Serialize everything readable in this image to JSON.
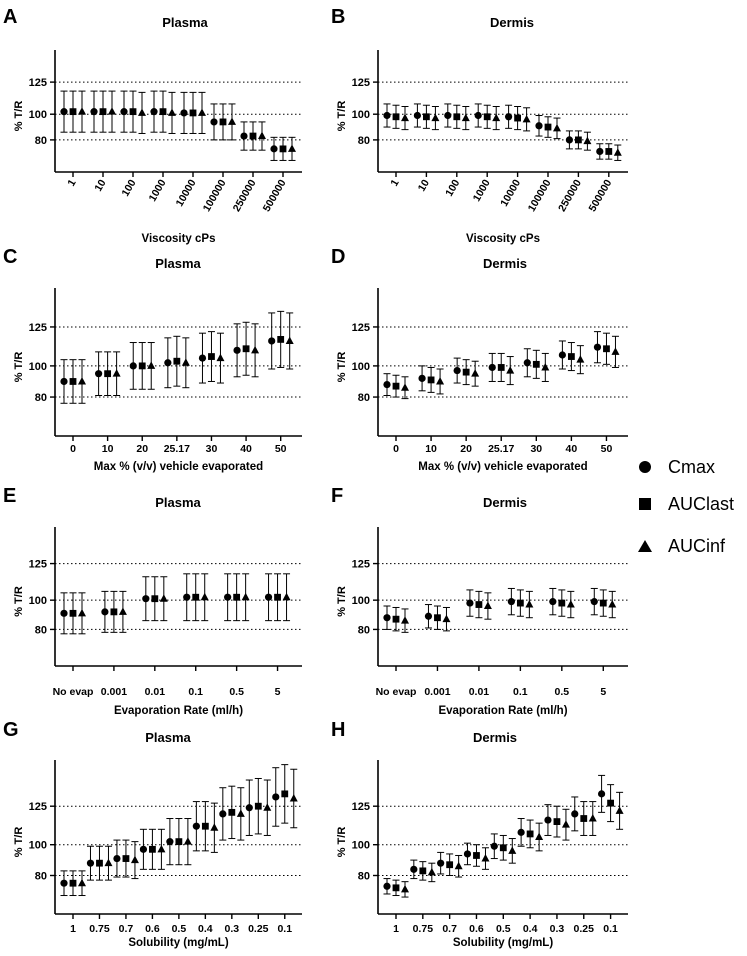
{
  "legend": {
    "items": [
      {
        "label": "Cmax",
        "marker": "circle"
      },
      {
        "label": "AUClast",
        "marker": "square"
      },
      {
        "label": "AUCinf",
        "marker": "triangle"
      }
    ]
  },
  "chart_data": [
    {
      "panel": "A",
      "title": "Plasma",
      "type": "scatter",
      "xlabel": "Viscosity cPs",
      "ylabel": "% T/R",
      "ylim": [
        55,
        150
      ],
      "yticks": [
        80,
        100,
        125
      ],
      "reference_lines": [
        80,
        100,
        125
      ],
      "tick_rotation": -60,
      "categories": [
        "1",
        "10",
        "100",
        "1000",
        "10000",
        "100000",
        "250000",
        "500000"
      ],
      "series": [
        {
          "name": "Cmax",
          "marker": "circle",
          "values": [
            102,
            102,
            102,
            102,
            101,
            94,
            83,
            73
          ],
          "error": [
            16,
            16,
            16,
            16,
            16,
            14,
            11,
            9
          ]
        },
        {
          "name": "AUClast",
          "marker": "square",
          "values": [
            102,
            102,
            102,
            102,
            101,
            94,
            83,
            73
          ],
          "error": [
            16,
            16,
            16,
            16,
            16,
            14,
            11,
            9
          ]
        },
        {
          "name": "AUCinf",
          "marker": "triangle",
          "values": [
            102,
            102,
            101,
            101,
            101,
            94,
            83,
            73
          ],
          "error": [
            16,
            16,
            16,
            16,
            16,
            14,
            11,
            9
          ]
        }
      ]
    },
    {
      "panel": "B",
      "title": "Dermis",
      "type": "scatter",
      "xlabel": "Viscosity cPs",
      "ylabel": "% T/R",
      "ylim": [
        55,
        150
      ],
      "yticks": [
        80,
        100,
        125
      ],
      "reference_lines": [
        80,
        100,
        125
      ],
      "tick_rotation": -60,
      "categories": [
        "1",
        "10",
        "100",
        "1000",
        "10000",
        "100000",
        "250000",
        "500000"
      ],
      "series": [
        {
          "name": "Cmax",
          "marker": "circle",
          "values": [
            99,
            99,
            99,
            99,
            98,
            91,
            80,
            71
          ],
          "error": [
            9,
            9,
            9,
            9,
            9,
            8,
            7,
            6
          ]
        },
        {
          "name": "AUClast",
          "marker": "square",
          "values": [
            98,
            98,
            98,
            98,
            97,
            90,
            80,
            71
          ],
          "error": [
            9,
            9,
            9,
            9,
            9,
            8,
            7,
            6
          ]
        },
        {
          "name": "AUCinf",
          "marker": "triangle",
          "values": [
            97,
            97,
            97,
            97,
            96,
            89,
            79,
            70
          ],
          "error": [
            9,
            9,
            9,
            9,
            9,
            8,
            7,
            6
          ]
        }
      ]
    },
    {
      "panel": "C",
      "title": "Plasma",
      "type": "scatter",
      "xlabel": "Max % (v/v) vehicle evaporated",
      "ylabel": "% T/R",
      "ylim": [
        55,
        150
      ],
      "yticks": [
        80,
        100,
        125
      ],
      "reference_lines": [
        80,
        100,
        125
      ],
      "tick_rotation": 0,
      "categories": [
        "0",
        "10",
        "20",
        "25.17",
        "30",
        "40",
        "50"
      ],
      "series": [
        {
          "name": "Cmax",
          "marker": "circle",
          "values": [
            90,
            95,
            100,
            102,
            105,
            110,
            116
          ],
          "error": [
            14,
            14,
            15,
            16,
            16,
            17,
            18
          ]
        },
        {
          "name": "AUClast",
          "marker": "square",
          "values": [
            90,
            95,
            100,
            103,
            106,
            111,
            117
          ],
          "error": [
            14,
            14,
            15,
            16,
            16,
            17,
            18
          ]
        },
        {
          "name": "AUCinf",
          "marker": "triangle",
          "values": [
            90,
            95,
            100,
            102,
            105,
            110,
            116
          ],
          "error": [
            14,
            14,
            15,
            16,
            16,
            17,
            18
          ]
        }
      ]
    },
    {
      "panel": "D",
      "title": "Dermis",
      "type": "scatter",
      "xlabel": "Max % (v/v) vehicle evaporated",
      "ylabel": "% T/R",
      "ylim": [
        55,
        150
      ],
      "yticks": [
        80,
        100,
        125
      ],
      "reference_lines": [
        80,
        100,
        125
      ],
      "tick_rotation": 0,
      "categories": [
        "0",
        "10",
        "20",
        "25.17",
        "30",
        "40",
        "50"
      ],
      "series": [
        {
          "name": "Cmax",
          "marker": "circle",
          "values": [
            88,
            92,
            97,
            99,
            102,
            107,
            112
          ],
          "error": [
            7,
            8,
            8,
            9,
            9,
            9,
            10
          ]
        },
        {
          "name": "AUClast",
          "marker": "square",
          "values": [
            87,
            91,
            96,
            99,
            101,
            106,
            111
          ],
          "error": [
            7,
            8,
            8,
            9,
            9,
            9,
            10
          ]
        },
        {
          "name": "AUCinf",
          "marker": "triangle",
          "values": [
            86,
            90,
            95,
            97,
            99,
            104,
            109
          ],
          "error": [
            7,
            8,
            8,
            9,
            9,
            9,
            10
          ]
        }
      ]
    },
    {
      "panel": "E",
      "title": "Plasma",
      "type": "scatter",
      "xlabel": "Evaporation Rate  (ml/h)",
      "ylabel": "% T/R",
      "ylim": [
        55,
        150
      ],
      "yticks": [
        80,
        100,
        125
      ],
      "reference_lines": [
        80,
        100,
        125
      ],
      "tick_rotation": 0,
      "categories": [
        "No evap",
        "0.001",
        "0.01",
        "0.1",
        "0.5",
        "5"
      ],
      "series": [
        {
          "name": "Cmax",
          "marker": "circle",
          "values": [
            91,
            92,
            101,
            102,
            102,
            102
          ],
          "error": [
            14,
            14,
            15,
            16,
            16,
            16
          ]
        },
        {
          "name": "AUClast",
          "marker": "square",
          "values": [
            91,
            92,
            101,
            102,
            102,
            102
          ],
          "error": [
            14,
            14,
            15,
            16,
            16,
            16
          ]
        },
        {
          "name": "AUCinf",
          "marker": "triangle",
          "values": [
            91,
            92,
            101,
            102,
            102,
            102
          ],
          "error": [
            14,
            14,
            15,
            16,
            16,
            16
          ]
        }
      ]
    },
    {
      "panel": "F",
      "title": "Dermis",
      "type": "scatter",
      "xlabel": "Evaporation Rate  (ml/h)",
      "ylabel": "% T/R",
      "ylim": [
        55,
        150
      ],
      "yticks": [
        80,
        100,
        125
      ],
      "reference_lines": [
        80,
        100,
        125
      ],
      "tick_rotation": 0,
      "categories": [
        "No evap",
        "0.001",
        "0.01",
        "0.1",
        "0.5",
        "5"
      ],
      "series": [
        {
          "name": "Cmax",
          "marker": "circle",
          "values": [
            88,
            89,
            98,
            99,
            99,
            99
          ],
          "error": [
            8,
            8,
            9,
            9,
            9,
            9
          ]
        },
        {
          "name": "AUClast",
          "marker": "square",
          "values": [
            87,
            88,
            97,
            98,
            98,
            98
          ],
          "error": [
            8,
            8,
            9,
            9,
            9,
            9
          ]
        },
        {
          "name": "AUCinf",
          "marker": "triangle",
          "values": [
            86,
            87,
            96,
            97,
            97,
            97
          ],
          "error": [
            8,
            8,
            9,
            9,
            9,
            9
          ]
        }
      ]
    },
    {
      "panel": "G",
      "title": "Plasma",
      "type": "scatter",
      "xlabel": "Solubility (mg/mL)",
      "ylabel": "% T/R",
      "ylim": [
        55,
        155
      ],
      "yticks": [
        80,
        100,
        125
      ],
      "reference_lines": [
        80,
        100,
        125
      ],
      "tick_rotation": 0,
      "categories": [
        "1",
        "0.75",
        "0.7",
        "0.6",
        "0.5",
        "0.4",
        "0.3",
        "0.25",
        "0.1"
      ],
      "series": [
        {
          "name": "Cmax",
          "marker": "circle",
          "values": [
            75,
            88,
            91,
            97,
            102,
            112,
            120,
            124,
            131
          ],
          "error": [
            8,
            11,
            12,
            13,
            15,
            16,
            17,
            18,
            19
          ]
        },
        {
          "name": "AUClast",
          "marker": "square",
          "values": [
            75,
            88,
            91,
            97,
            102,
            112,
            121,
            125,
            133
          ],
          "error": [
            8,
            11,
            12,
            13,
            15,
            16,
            17,
            18,
            19
          ]
        },
        {
          "name": "AUCinf",
          "marker": "triangle",
          "values": [
            75,
            88,
            90,
            97,
            102,
            111,
            120,
            124,
            130
          ],
          "error": [
            8,
            11,
            12,
            13,
            15,
            16,
            17,
            18,
            19
          ]
        }
      ]
    },
    {
      "panel": "H",
      "title": "Dermis",
      "type": "scatter",
      "xlabel": "Solubility (mg/mL)",
      "ylabel": "% T/R",
      "ylim": [
        55,
        155
      ],
      "yticks": [
        80,
        100,
        125
      ],
      "reference_lines": [
        80,
        100,
        125
      ],
      "tick_rotation": 0,
      "categories": [
        "1",
        "0.75",
        "0.7",
        "0.6",
        "0.5",
        "0.4",
        "0.3",
        "0.25",
        "0.1"
      ],
      "series": [
        {
          "name": "Cmax",
          "marker": "circle",
          "values": [
            73,
            84,
            88,
            94,
            99,
            108,
            116,
            120,
            133
          ],
          "error": [
            5,
            6,
            7,
            7,
            8,
            9,
            10,
            11,
            12
          ]
        },
        {
          "name": "AUClast",
          "marker": "square",
          "values": [
            72,
            83,
            87,
            93,
            98,
            107,
            115,
            117,
            127
          ],
          "error": [
            5,
            6,
            7,
            7,
            8,
            9,
            10,
            11,
            12
          ]
        },
        {
          "name": "AUCinf",
          "marker": "triangle",
          "values": [
            71,
            82,
            86,
            91,
            96,
            105,
            113,
            117,
            122
          ],
          "error": [
            5,
            6,
            7,
            7,
            8,
            9,
            10,
            11,
            12
          ]
        }
      ]
    }
  ]
}
